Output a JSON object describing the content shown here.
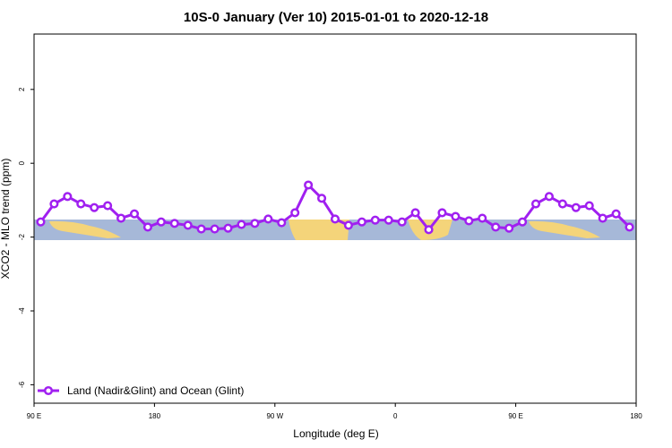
{
  "chart_data": {
    "type": "line",
    "title": "10S-0 January (Ver 10)   2015-01-01 to 2020-12-18",
    "x_label": "Longitude (deg E)",
    "y_label": "XCO2 - MLO trend (ppm)",
    "x": [
      95,
      105,
      115,
      125,
      135,
      145,
      155,
      165,
      175,
      185,
      195,
      205,
      215,
      225,
      235,
      245,
      255,
      265,
      275,
      285,
      295,
      305,
      315,
      325,
      335,
      345,
      355,
      365,
      375,
      385,
      395,
      405,
      415,
      425,
      435,
      445,
      455,
      465,
      475,
      485,
      495,
      505,
      515,
      525,
      535
    ],
    "series": [
      {
        "name": "Land (Nadir&Glint) and Ocean (Glint)",
        "color": "#a020f0",
        "values": [
          -1.59,
          -1.1,
          -0.9,
          -1.1,
          -1.2,
          -1.15,
          -1.49,
          -1.37,
          -1.73,
          -1.59,
          -1.63,
          -1.68,
          -1.78,
          -1.78,
          -1.76,
          -1.66,
          -1.63,
          -1.51,
          -1.61,
          -1.34,
          -0.59,
          -0.95,
          -1.51,
          -1.68,
          -1.59,
          -1.54,
          -1.54,
          -1.59,
          -1.34,
          -1.8,
          -1.34,
          -1.44,
          -1.56,
          -1.49,
          -1.73,
          -1.76,
          -1.59,
          -1.1,
          -0.9,
          -1.1,
          -1.2,
          -1.15,
          -1.49,
          -1.37,
          -1.73
        ]
      }
    ],
    "xlim": [
      90,
      540
    ],
    "xticks": [
      {
        "value": 90,
        "label": "90 E"
      },
      {
        "value": 180,
        "label": "180"
      },
      {
        "value": 270,
        "label": "90 W"
      },
      {
        "value": 360,
        "label": "0"
      },
      {
        "value": 450,
        "label": "90 E"
      },
      {
        "value": 540,
        "label": "180"
      }
    ],
    "ylim": [
      -6.5,
      3.5
    ],
    "yticks": [
      2,
      0,
      -2,
      -4,
      -6
    ],
    "legend": "bottom-left"
  }
}
